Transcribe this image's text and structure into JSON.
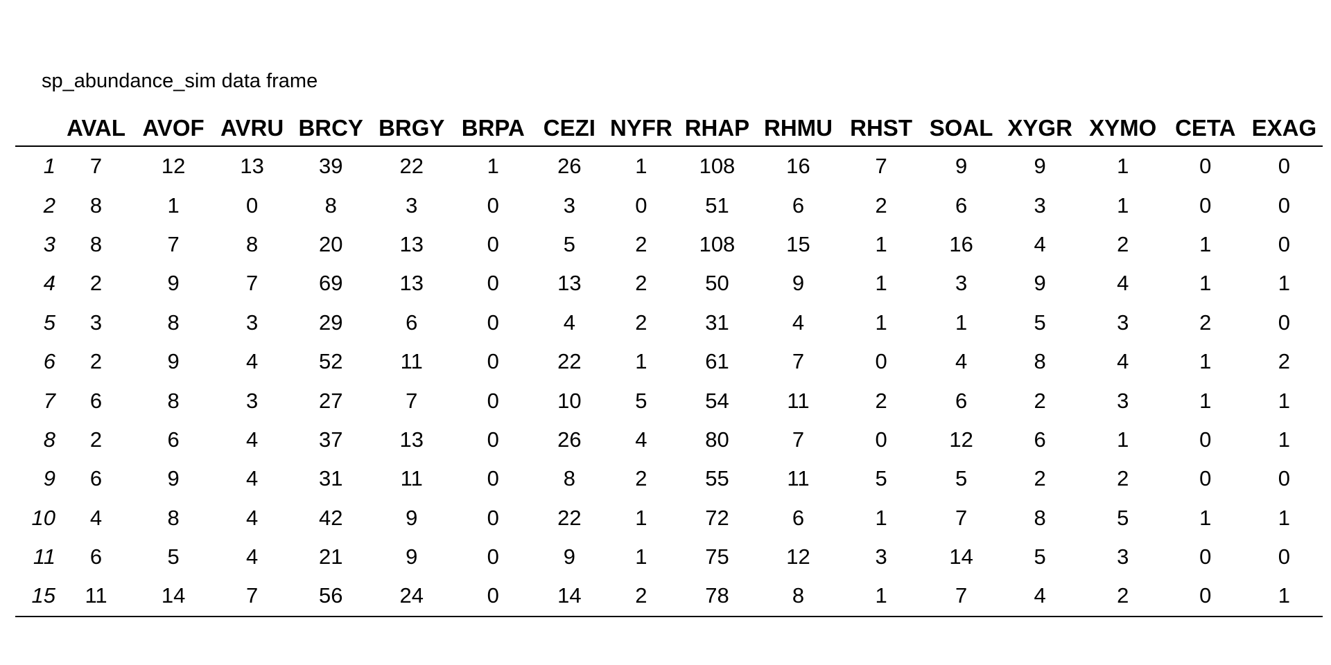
{
  "caption": "sp_abundance_sim data frame",
  "chart_data": {
    "type": "table",
    "columns": [
      "AVAL",
      "AVOF",
      "AVRU",
      "BRCY",
      "BRGY",
      "BRPA",
      "CEZI",
      "NYFR",
      "RHAP",
      "RHMU",
      "RHST",
      "SOAL",
      "XYGR",
      "XYMO",
      "CETA",
      "EXAG"
    ],
    "row_names": [
      "1",
      "2",
      "3",
      "4",
      "5",
      "6",
      "7",
      "8",
      "9",
      "10",
      "11",
      "15"
    ],
    "rows": [
      [
        7,
        12,
        13,
        39,
        22,
        1,
        26,
        1,
        108,
        16,
        7,
        9,
        9,
        1,
        0,
        0
      ],
      [
        8,
        1,
        0,
        8,
        3,
        0,
        3,
        0,
        51,
        6,
        2,
        6,
        3,
        1,
        0,
        0
      ],
      [
        8,
        7,
        8,
        20,
        13,
        0,
        5,
        2,
        108,
        15,
        1,
        16,
        4,
        2,
        1,
        0
      ],
      [
        2,
        9,
        7,
        69,
        13,
        0,
        13,
        2,
        50,
        9,
        1,
        3,
        9,
        4,
        1,
        1
      ],
      [
        3,
        8,
        3,
        29,
        6,
        0,
        4,
        2,
        31,
        4,
        1,
        1,
        5,
        3,
        2,
        0
      ],
      [
        2,
        9,
        4,
        52,
        11,
        0,
        22,
        1,
        61,
        7,
        0,
        4,
        8,
        4,
        1,
        2
      ],
      [
        6,
        8,
        3,
        27,
        7,
        0,
        10,
        5,
        54,
        11,
        2,
        6,
        2,
        3,
        1,
        1
      ],
      [
        2,
        6,
        4,
        37,
        13,
        0,
        26,
        4,
        80,
        7,
        0,
        12,
        6,
        1,
        0,
        1
      ],
      [
        6,
        9,
        4,
        31,
        11,
        0,
        8,
        2,
        55,
        11,
        5,
        5,
        2,
        2,
        0,
        0
      ],
      [
        4,
        8,
        4,
        42,
        9,
        0,
        22,
        1,
        72,
        6,
        1,
        7,
        8,
        5,
        1,
        1
      ],
      [
        6,
        5,
        4,
        21,
        9,
        0,
        9,
        1,
        75,
        12,
        3,
        14,
        5,
        3,
        0,
        0
      ],
      [
        11,
        14,
        7,
        56,
        24,
        0,
        14,
        2,
        78,
        8,
        1,
        7,
        4,
        2,
        0,
        1
      ]
    ]
  }
}
